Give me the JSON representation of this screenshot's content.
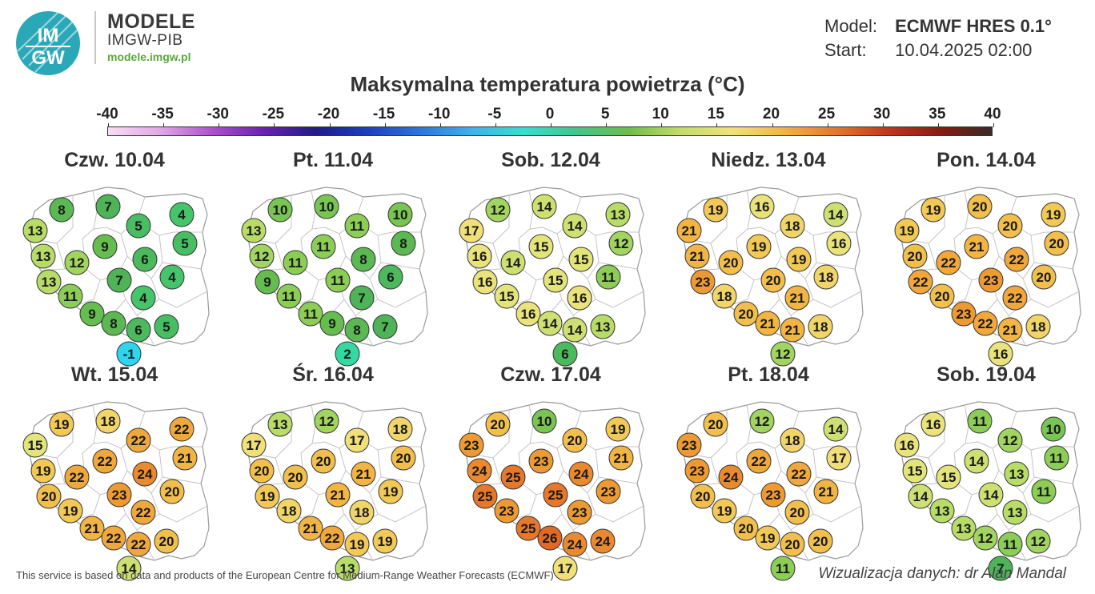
{
  "header": {
    "logo_text_top": "IM",
    "logo_text_bottom": "GW",
    "brand_name": "MODELE",
    "brand_sub": "IMGW-PIB",
    "brand_url": "modele.imgw.pl",
    "model_label": "Model:",
    "model_value": "ECMWF HRES 0.1°",
    "start_label": "Start:",
    "start_value": "10.04.2025 02:00"
  },
  "title": "Maksymalna temperatura powietrza (°C)",
  "scale": {
    "ticks": [
      "-40",
      "-35",
      "-30",
      "-25",
      "-20",
      "-15",
      "-10",
      "-5",
      "0",
      "5",
      "10",
      "15",
      "20",
      "25",
      "30",
      "35",
      "40"
    ],
    "colors": [
      "#f7dcf5",
      "#e2a7e7",
      "#b04fcf",
      "#6b1fb5",
      "#201b8c",
      "#1b3fc4",
      "#2d74e0",
      "#3bb3ee",
      "#35e0d0",
      "#3fc78a",
      "#6cbd4a",
      "#c3dc6a",
      "#f1e27a",
      "#f2b443",
      "#e7772a",
      "#c4361b",
      "#8a1b10",
      "#3a2a28"
    ]
  },
  "days": [
    {
      "title": "Czw. 10.04",
      "values": [
        "8",
        "7",
        "13",
        "5",
        "4",
        "9",
        "5",
        "13",
        "12",
        "6",
        "13",
        "7",
        "4",
        "4",
        "11",
        "9",
        "8",
        "6",
        "5",
        "-1"
      ]
    },
    {
      "title": "Pt. 11.04",
      "values": [
        "10",
        "10",
        "13",
        "11",
        "10",
        "11",
        "8",
        "12",
        "11",
        "8",
        "9",
        "11",
        "6",
        "7",
        "11",
        "11",
        "9",
        "8",
        "7",
        "2"
      ]
    },
    {
      "title": "Sob. 12.04",
      "values": [
        "12",
        "14",
        "17",
        "14",
        "13",
        "15",
        "12",
        "16",
        "14",
        "15",
        "16",
        "15",
        "11",
        "16",
        "15",
        "16",
        "14",
        "14",
        "13",
        "6"
      ]
    },
    {
      "title": "Niedz. 13.04",
      "values": [
        "19",
        "16",
        "21",
        "18",
        "14",
        "19",
        "16",
        "21",
        "20",
        "19",
        "23",
        "20",
        "18",
        "21",
        "18",
        "20",
        "21",
        "21",
        "18",
        "12"
      ]
    },
    {
      "title": "Pon. 14.04",
      "values": [
        "19",
        "20",
        "19",
        "20",
        "19",
        "21",
        "20",
        "20",
        "22",
        "22",
        "22",
        "23",
        "20",
        "22",
        "20",
        "23",
        "22",
        "21",
        "18",
        "16"
      ]
    },
    {
      "title": "Wt. 15.04",
      "values": [
        "19",
        "18",
        "15",
        "22",
        "22",
        "22",
        "21",
        "19",
        "22",
        "24",
        "20",
        "23",
        "20",
        "22",
        "19",
        "21",
        "22",
        "22",
        "20",
        "14"
      ]
    },
    {
      "title": "Śr. 16.04",
      "values": [
        "13",
        "12",
        "17",
        "17",
        "18",
        "20",
        "20",
        "20",
        "20",
        "21",
        "19",
        "21",
        "19",
        "18",
        "18",
        "21",
        "22",
        "19",
        "19",
        "13"
      ]
    },
    {
      "title": "Czw. 17.04",
      "values": [
        "20",
        "10",
        "23",
        "20",
        "19",
        "23",
        "21",
        "24",
        "25",
        "24",
        "25",
        "25",
        "23",
        "23",
        "23",
        "25",
        "26",
        "24",
        "24",
        "17"
      ]
    },
    {
      "title": "Pt. 18.04",
      "values": [
        "20",
        "12",
        "23",
        "18",
        "14",
        "22",
        "17",
        "23",
        "24",
        "22",
        "20",
        "23",
        "21",
        "20",
        "19",
        "20",
        "19",
        "20",
        "20",
        "11"
      ]
    },
    {
      "title": "Sob. 19.04",
      "values": [
        "16",
        "11",
        "16",
        "12",
        "10",
        "14",
        "11",
        "15",
        "15",
        "13",
        "14",
        "14",
        "11",
        "13",
        "13",
        "13",
        "12",
        "11",
        "12",
        "7"
      ]
    }
  ],
  "footer": {
    "left": "This service is based on data and products of the European Centre for Medium-Range Weather Forecasts (ECMWF)",
    "right": "Wizualizacja danych: dr Alan Mandal"
  }
}
